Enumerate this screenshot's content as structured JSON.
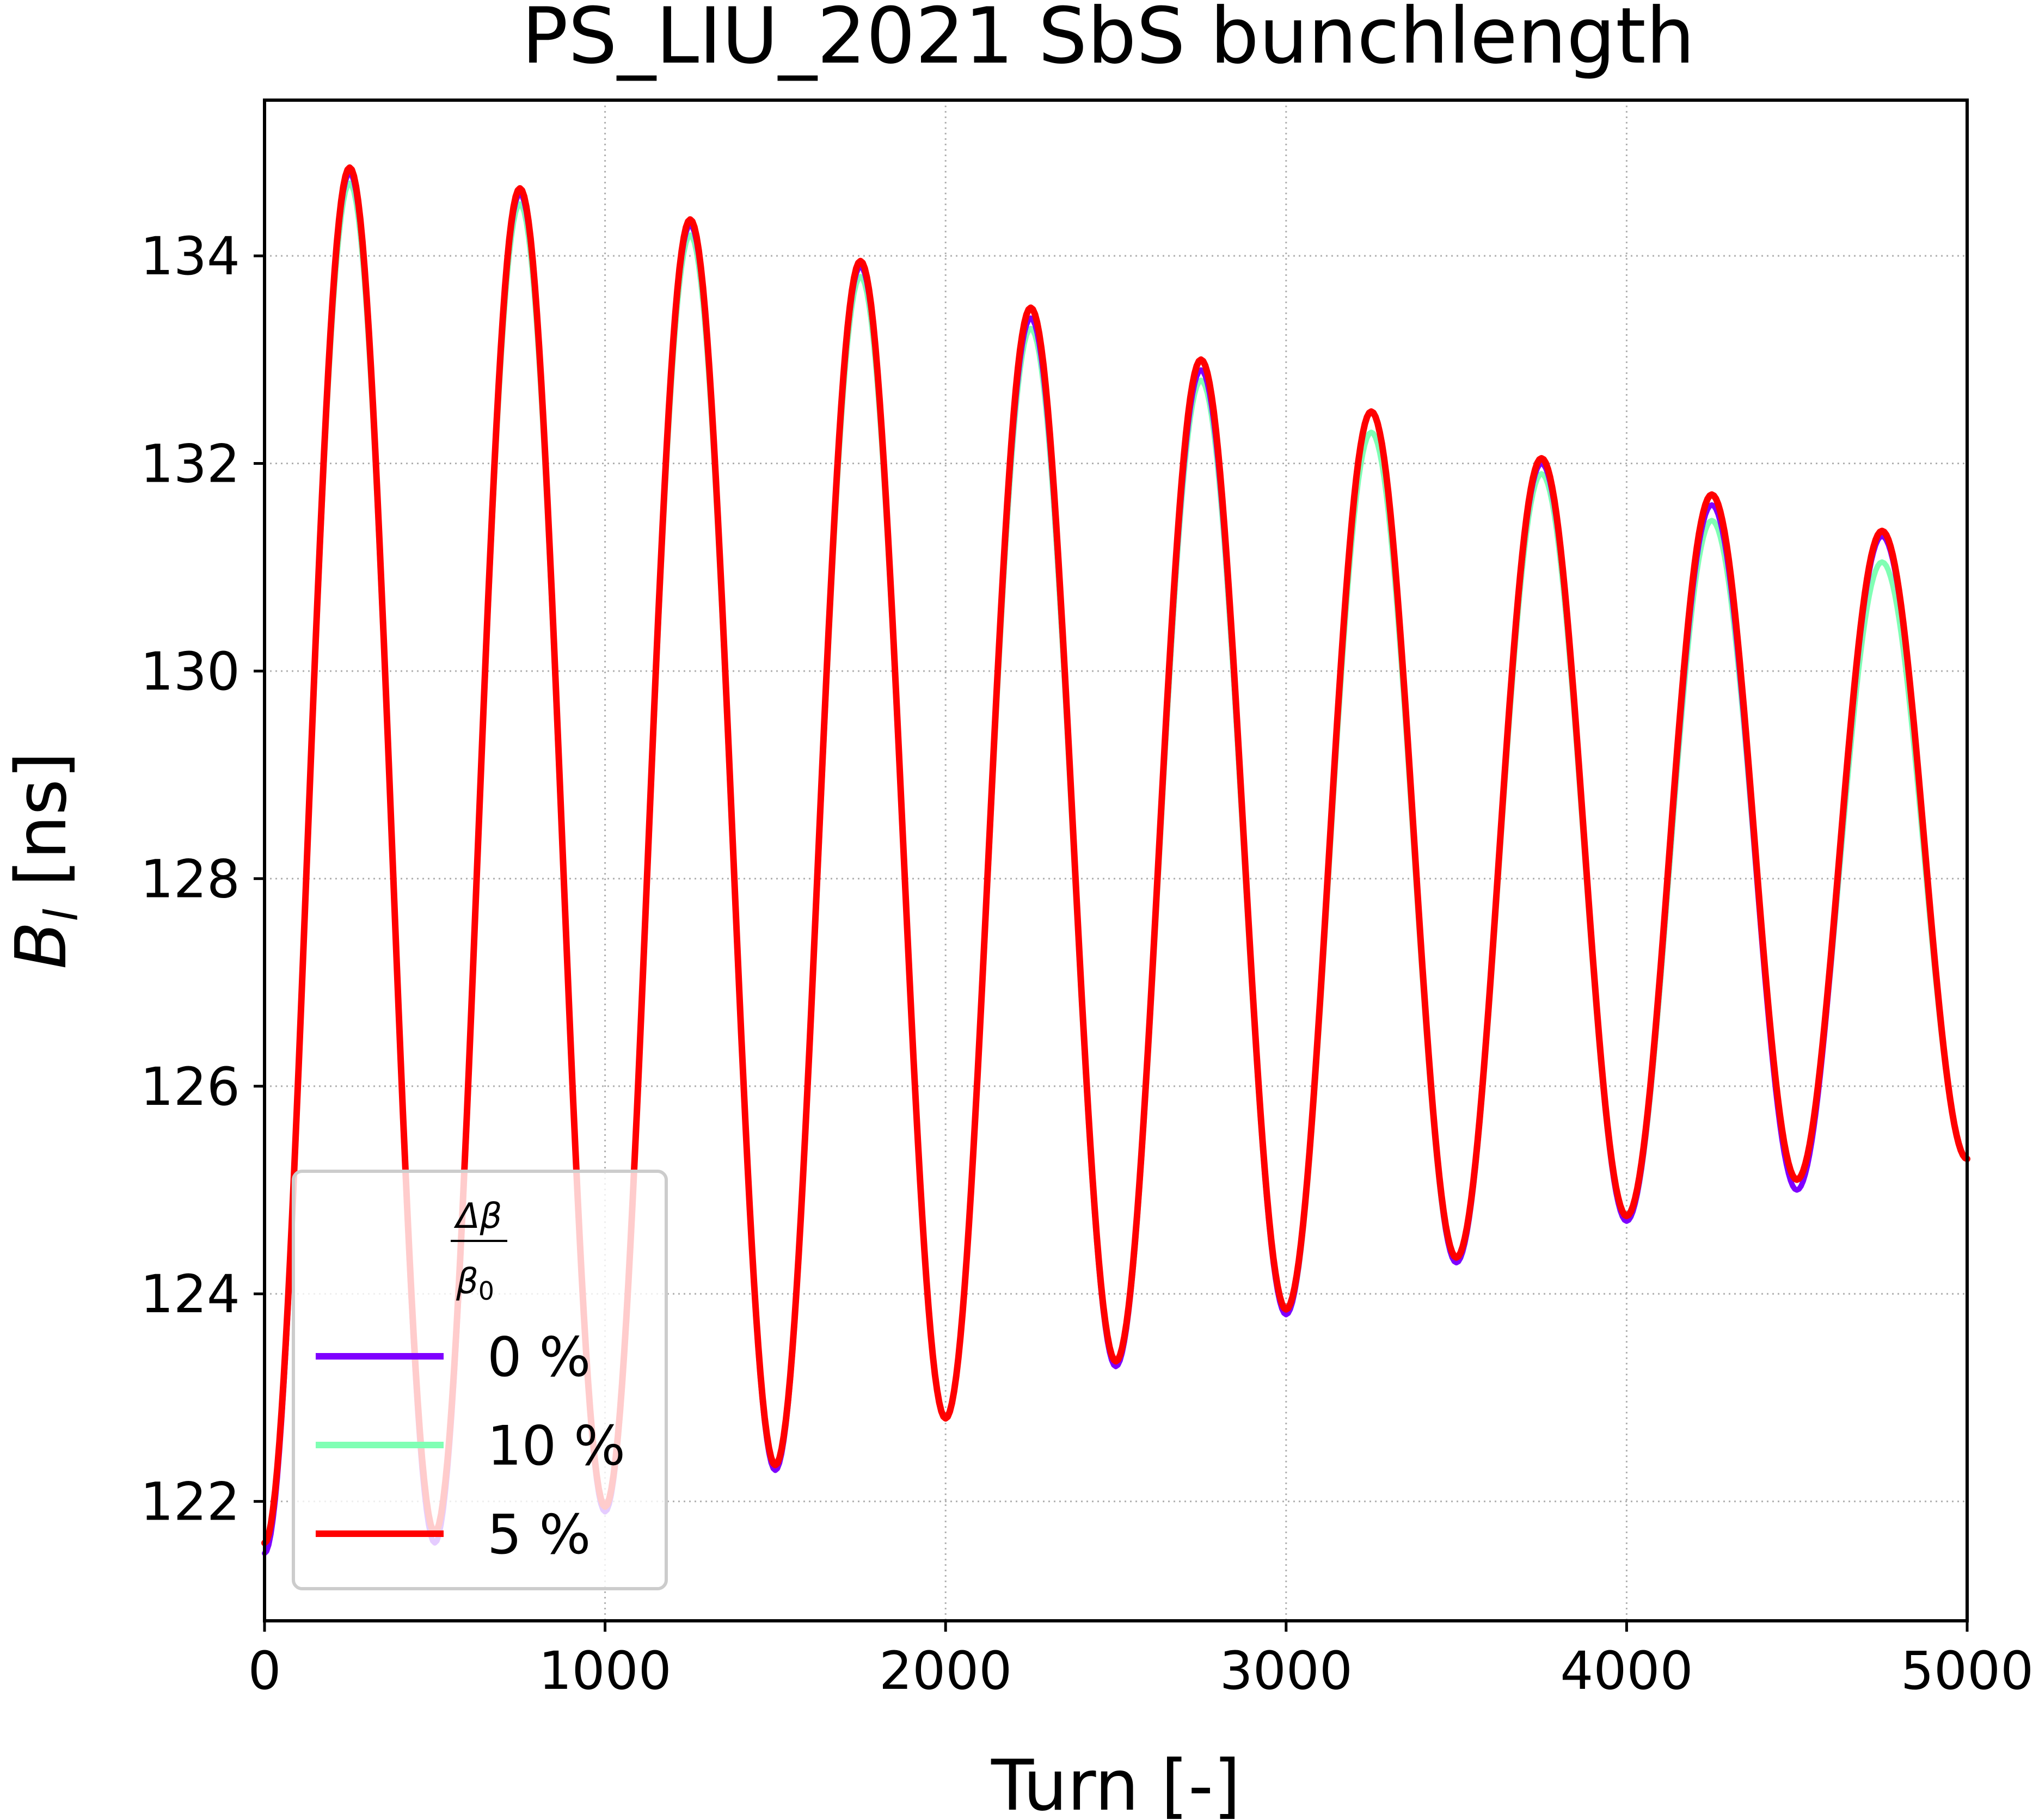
{
  "chart_data": {
    "type": "line",
    "title": "PS_LIU_2021 SbS bunchlength",
    "xlabel": "Turn [-]",
    "ylabel": "B",
    "ylabel_subscript": "l",
    "ylabel_unit": "[ns]",
    "xlim": [
      0,
      5000
    ],
    "ylim": [
      120.85,
      135.5
    ],
    "xticks": [
      0,
      1000,
      2000,
      3000,
      4000,
      5000
    ],
    "yticks": [
      122,
      124,
      126,
      128,
      130,
      132,
      134
    ],
    "grid": true,
    "legend": {
      "placement": "lower-left",
      "title_numerator": "Δβ",
      "title_denominator": "β",
      "title_denominator_subscript": "0"
    },
    "x": [
      0,
      250,
      500,
      750,
      1000,
      1250,
      1500,
      1750,
      2000,
      2250,
      2500,
      2750,
      3000,
      3250,
      3500,
      3750,
      4000,
      4250,
      4500,
      4750,
      5000
    ],
    "series": [
      {
        "name": "0 %",
        "color": "#7f00ff",
        "values": [
          121.5,
          134.8,
          121.6,
          134.6,
          121.9,
          134.3,
          122.3,
          133.9,
          122.8,
          133.4,
          123.3,
          132.9,
          123.8,
          132.5,
          124.3,
          132.0,
          124.7,
          131.6,
          125.0,
          131.3,
          125.3
        ]
      },
      {
        "name": "10 %",
        "color": "#80ffb4",
        "values": [
          121.6,
          134.7,
          121.7,
          134.5,
          121.9,
          134.2,
          122.3,
          133.8,
          122.8,
          133.3,
          123.3,
          132.8,
          123.8,
          132.3,
          124.3,
          131.9,
          124.7,
          131.45,
          125.1,
          131.05,
          125.3
        ]
      },
      {
        "name": "5 %",
        "color": "#ff0000",
        "values": [
          121.6,
          134.85,
          121.7,
          134.65,
          121.95,
          134.35,
          122.35,
          133.95,
          122.8,
          133.5,
          123.35,
          133.0,
          123.85,
          132.5,
          124.35,
          132.05,
          124.75,
          131.7,
          125.1,
          131.35,
          125.3
        ]
      }
    ]
  }
}
